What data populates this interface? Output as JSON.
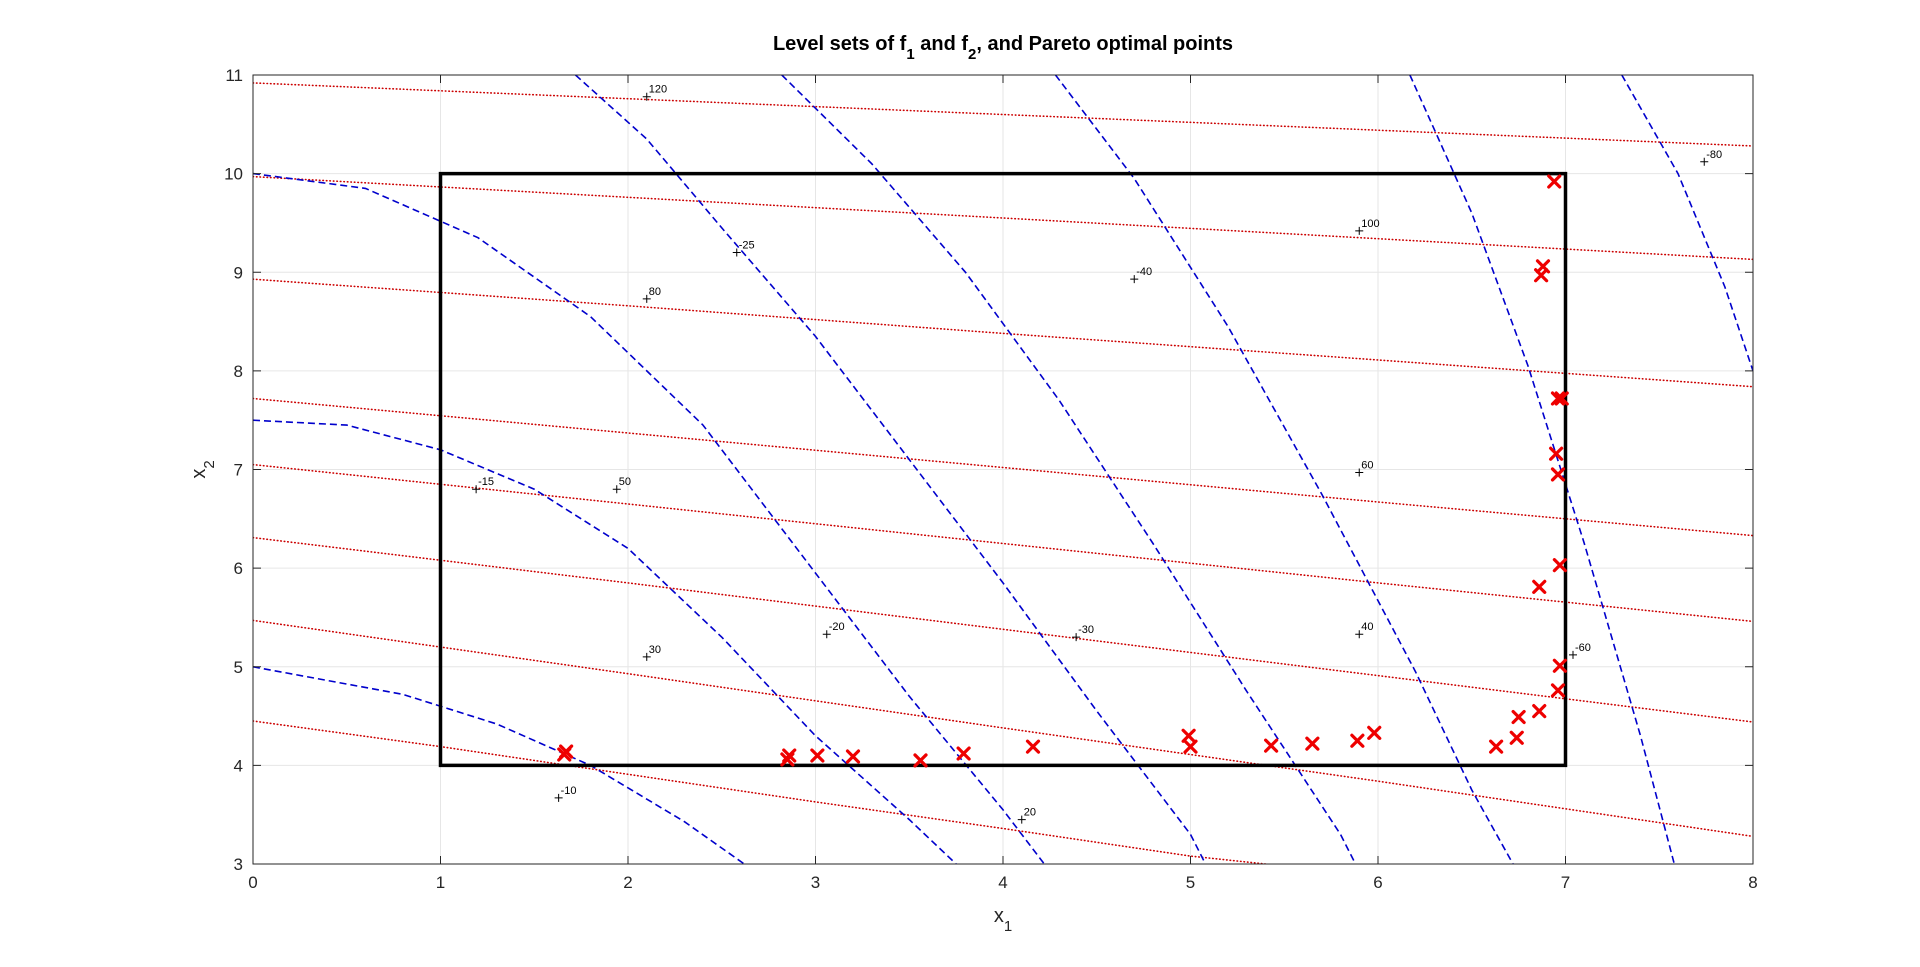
{
  "chart_data": {
    "type": "line",
    "title": {
      "parts": [
        {
          "text": "Level sets of f",
          "sub": false
        },
        {
          "text": "1",
          "sub": true
        },
        {
          "text": " and f",
          "sub": false
        },
        {
          "text": "2",
          "sub": true
        },
        {
          "text": ", and Pareto optimal points",
          "sub": false
        }
      ]
    },
    "xlabel": {
      "main": "x",
      "sub": "1"
    },
    "ylabel": {
      "main": "x",
      "sub": "2"
    },
    "xlim": [
      0,
      8
    ],
    "ylim": [
      3,
      11
    ],
    "xticks": [
      "0",
      "1",
      "2",
      "3",
      "4",
      "5",
      "6",
      "7",
      "8"
    ],
    "yticks": [
      "3",
      "4",
      "5",
      "6",
      "7",
      "8",
      "9",
      "10",
      "11"
    ],
    "grid": true,
    "colors": {
      "f1_contours": "#0000cc",
      "f2_contours": "#cc0000",
      "pareto": "#ee0000",
      "box": "#000000",
      "grid": "#e6e6e6",
      "axes": "#262626"
    },
    "feasible_box": {
      "x": [
        1,
        7
      ],
      "y": [
        4,
        10
      ]
    },
    "f1_contours": {
      "style": "dashed",
      "series": [
        {
          "level": -10,
          "points": [
            [
              0,
              5.0
            ],
            [
              0.8,
              4.72
            ],
            [
              1.3,
              4.42
            ],
            [
              1.8,
              4.0
            ],
            [
              2.3,
              3.43
            ],
            [
              2.62,
              3.0
            ]
          ]
        },
        {
          "level": -15,
          "points": [
            [
              0,
              7.5
            ],
            [
              0.5,
              7.45
            ],
            [
              1.0,
              7.2
            ],
            [
              1.5,
              6.8
            ],
            [
              2.0,
              6.2
            ],
            [
              2.5,
              5.3
            ],
            [
              3.0,
              4.3
            ],
            [
              3.5,
              3.45
            ],
            [
              3.75,
              3.0
            ]
          ]
        },
        {
          "level": -20,
          "points": [
            [
              0,
              10.0
            ],
            [
              0.6,
              9.85
            ],
            [
              1.2,
              9.35
            ],
            [
              1.8,
              8.55
            ],
            [
              2.4,
              7.45
            ],
            [
              3.0,
              5.95
            ],
            [
              3.5,
              4.7
            ],
            [
              4.0,
              3.55
            ],
            [
              4.22,
              3.0
            ]
          ]
        },
        {
          "level": -25,
          "points": [
            [
              1.72,
              11.0
            ],
            [
              2.1,
              10.35
            ],
            [
              2.5,
              9.45
            ],
            [
              3.0,
              8.35
            ],
            [
              3.5,
              7.1
            ],
            [
              4.0,
              5.85
            ],
            [
              4.5,
              4.55
            ],
            [
              5.0,
              3.3
            ],
            [
              5.08,
              3.0
            ]
          ]
        },
        {
          "level": -30,
          "points": [
            [
              2.82,
              11.0
            ],
            [
              3.3,
              10.1
            ],
            [
              3.8,
              9.0
            ],
            [
              4.3,
              7.7
            ],
            [
              4.8,
              6.25
            ],
            [
              5.3,
              4.75
            ],
            [
              5.8,
              3.3
            ],
            [
              5.88,
              3.0
            ]
          ]
        },
        {
          "level": -40,
          "points": [
            [
              4.28,
              11.0
            ],
            [
              4.7,
              9.95
            ],
            [
              5.2,
              8.45
            ],
            [
              5.7,
              6.75
            ],
            [
              6.2,
              4.95
            ],
            [
              6.5,
              3.75
            ],
            [
              6.72,
              3.0
            ]
          ]
        },
        {
          "level": -60,
          "points": [
            [
              6.17,
              11.0
            ],
            [
              6.5,
              9.6
            ],
            [
              6.8,
              8.05
            ],
            [
              7.1,
              6.25
            ],
            [
              7.4,
              4.3
            ],
            [
              7.58,
              3.0
            ]
          ]
        },
        {
          "level": -80,
          "points": [
            [
              7.3,
              11.0
            ],
            [
              7.6,
              10.0
            ],
            [
              7.85,
              8.85
            ],
            [
              8.0,
              8.0
            ]
          ]
        }
      ]
    },
    "f2_contours": {
      "style": "dotted",
      "series": [
        {
          "level": 20,
          "points": [
            [
              0,
              4.45
            ],
            [
              1.0,
              4.19
            ],
            [
              2.0,
              3.91
            ],
            [
              3.0,
              3.63
            ],
            [
              4.0,
              3.36
            ],
            [
              5.0,
              3.08
            ],
            [
              5.4,
              3.0
            ]
          ]
        },
        {
          "level": 30,
          "points": [
            [
              0,
              5.47
            ],
            [
              2.0,
              4.93
            ],
            [
              4.0,
              4.38
            ],
            [
              6.0,
              3.84
            ],
            [
              7.0,
              3.56
            ],
            [
              8.0,
              3.28
            ]
          ]
        },
        {
          "level": 40,
          "points": [
            [
              0,
              6.31
            ],
            [
              2.0,
              5.85
            ],
            [
              4.0,
              5.38
            ],
            [
              6.0,
              4.91
            ],
            [
              8.0,
              4.44
            ]
          ]
        },
        {
          "level": 50,
          "points": [
            [
              0,
              7.05
            ],
            [
              2.0,
              6.65
            ],
            [
              4.0,
              6.25
            ],
            [
              6.0,
              5.85
            ],
            [
              8.0,
              5.46
            ]
          ]
        },
        {
          "level": 60,
          "points": [
            [
              0,
              7.72
            ],
            [
              2.0,
              7.37
            ],
            [
              4.0,
              7.02
            ],
            [
              6.0,
              6.67
            ],
            [
              8.0,
              6.33
            ]
          ]
        },
        {
          "level": 80,
          "points": [
            [
              0,
              8.93
            ],
            [
              2.0,
              8.66
            ],
            [
              4.0,
              8.38
            ],
            [
              6.0,
              8.11
            ],
            [
              8.0,
              7.84
            ]
          ]
        },
        {
          "level": 100,
          "points": [
            [
              0,
              9.97
            ],
            [
              2.0,
              9.76
            ],
            [
              4.0,
              9.55
            ],
            [
              6.0,
              9.34
            ],
            [
              8.0,
              9.13
            ]
          ]
        },
        {
          "level": 120,
          "points": [
            [
              0,
              10.92
            ],
            [
              2.0,
              10.76
            ],
            [
              4.0,
              10.6
            ],
            [
              6.0,
              10.44
            ],
            [
              8.0,
              10.28
            ]
          ]
        }
      ]
    },
    "contour_labels": [
      {
        "text": "-10",
        "x": 1.63,
        "y": 3.67
      },
      {
        "text": "-15",
        "x": 1.19,
        "y": 6.8
      },
      {
        "text": "-20",
        "x": 3.06,
        "y": 5.33
      },
      {
        "text": "-25",
        "x": 2.58,
        "y": 9.2
      },
      {
        "text": "-30",
        "x": 4.39,
        "y": 5.3
      },
      {
        "text": "-40",
        "x": 4.7,
        "y": 8.93
      },
      {
        "text": "-60",
        "x": 7.04,
        "y": 5.12
      },
      {
        "text": "-80",
        "x": 7.74,
        "y": 10.12
      },
      {
        "text": "20",
        "x": 4.1,
        "y": 3.45
      },
      {
        "text": "30",
        "x": 2.1,
        "y": 5.1
      },
      {
        "text": "40",
        "x": 5.9,
        "y": 5.33
      },
      {
        "text": "50",
        "x": 1.94,
        "y": 6.8
      },
      {
        "text": "60",
        "x": 5.9,
        "y": 6.97
      },
      {
        "text": "80",
        "x": 2.1,
        "y": 8.73
      },
      {
        "text": "100",
        "x": 5.9,
        "y": 9.42
      },
      {
        "text": "120",
        "x": 2.1,
        "y": 10.78
      }
    ],
    "pareto_points": {
      "marker": "x",
      "x": [
        1.66,
        1.67,
        2.85,
        2.86,
        3.01,
        3.2,
        3.56,
        3.79,
        4.16,
        4.99,
        5.0,
        5.43,
        5.65,
        5.89,
        5.98,
        6.63,
        6.74,
        6.75,
        6.86,
        6.86,
        6.87,
        6.88,
        6.94,
        6.95,
        6.96,
        6.96,
        6.96,
        6.97,
        6.97,
        6.98
      ],
      "y": [
        4.11,
        4.14,
        4.06,
        4.1,
        4.1,
        4.09,
        4.05,
        4.12,
        4.19,
        4.3,
        4.19,
        4.2,
        4.22,
        4.25,
        4.33,
        4.19,
        4.28,
        4.49,
        4.55,
        5.81,
        8.97,
        9.06,
        9.92,
        7.16,
        4.76,
        6.95,
        7.72,
        5.01,
        6.03,
        7.72
      ]
    }
  }
}
